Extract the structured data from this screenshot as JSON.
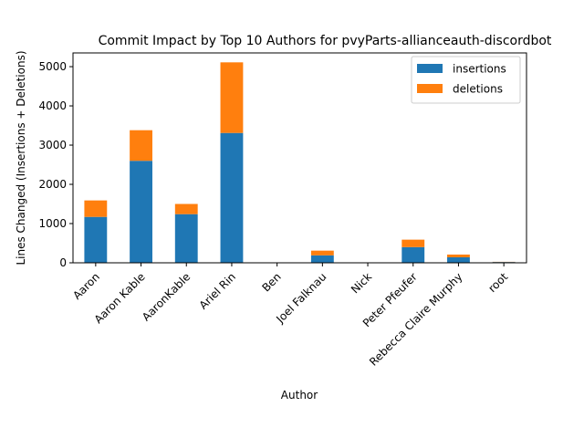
{
  "chart_data": {
    "type": "bar",
    "stacked": true,
    "title": "Commit Impact by Top 10 Authors for pvyParts-allianceauth-discordbot",
    "xlabel": "Author",
    "ylabel": "Lines Changed (Insertions + Deletions)",
    "categories": [
      "Aaron",
      "Aaron Kable",
      "AaronKable",
      "Ariel Rin",
      "Ben",
      "Joel Falknau",
      "Nick",
      "Peter Pfeufer",
      "Rebecca Claire Murphy",
      "root"
    ],
    "series": [
      {
        "name": "insertions",
        "color": "#1f77b4",
        "values": [
          1170,
          2600,
          1240,
          3310,
          0,
          190,
          0,
          400,
          140,
          20
        ]
      },
      {
        "name": "deletions",
        "color": "#ff7f0e",
        "values": [
          420,
          780,
          260,
          1800,
          0,
          120,
          0,
          190,
          70,
          5
        ]
      }
    ],
    "ylim": [
      0,
      5350
    ],
    "yticks": [
      0,
      1000,
      2000,
      3000,
      4000,
      5000
    ],
    "ytick_labels": [
      "0",
      "1000",
      "2000",
      "3000",
      "4000",
      "5000"
    ],
    "grid": false,
    "legend_position": "top-right"
  }
}
